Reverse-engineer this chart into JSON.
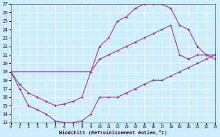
{
  "xlabel": "Windchill (Refroidissement éolien,°C)",
  "bg_color": "#cceeff",
  "line_color": "#993399",
  "grid_color": "#ffffff",
  "xlim": [
    0,
    23
  ],
  "ylim": [
    13,
    27
  ],
  "x_ticks": [
    0,
    1,
    2,
    3,
    4,
    5,
    6,
    7,
    8,
    9,
    10,
    11,
    12,
    13,
    14,
    15,
    16,
    17,
    18,
    19,
    20,
    21,
    22,
    23
  ],
  "y_ticks": [
    13,
    14,
    15,
    16,
    17,
    18,
    19,
    20,
    21,
    22,
    23,
    24,
    25,
    26,
    27
  ],
  "curve_upper_x": [
    0,
    9,
    10,
    11,
    12,
    13,
    14,
    15,
    16,
    17,
    18,
    19,
    20,
    21,
    22,
    23
  ],
  "curve_upper_y": [
    19,
    19,
    22,
    23,
    25,
    25.5,
    26.5,
    27,
    27,
    27,
    26.5,
    24.5,
    24,
    22,
    21,
    20.5
  ],
  "curve_lower_x": [
    0,
    1,
    2,
    3,
    4,
    5,
    6,
    7,
    8,
    9,
    10,
    11,
    12,
    13,
    14,
    15,
    16,
    17,
    18,
    19,
    20,
    21,
    22,
    23
  ],
  "curve_lower_y": [
    19,
    17,
    15,
    14.5,
    14,
    13.2,
    13,
    13,
    13.2,
    14,
    16,
    16,
    16,
    16.5,
    17,
    17.5,
    18,
    18,
    18.5,
    19,
    19.5,
    20,
    20.5,
    21
  ],
  "curve_diag_x": [
    0,
    1,
    2,
    3,
    4,
    5,
    6,
    7,
    8,
    9,
    10,
    11,
    12,
    13,
    14,
    15,
    16,
    17,
    18,
    19,
    20,
    21,
    22,
    23
  ],
  "curve_diag_y": [
    19,
    17.5,
    16.5,
    16,
    15.5,
    15,
    15.2,
    15.5,
    16,
    19,
    20.5,
    21,
    21.5,
    22,
    22.5,
    23,
    23.5,
    24,
    24.5,
    21,
    20.5,
    21,
    21,
    21
  ]
}
